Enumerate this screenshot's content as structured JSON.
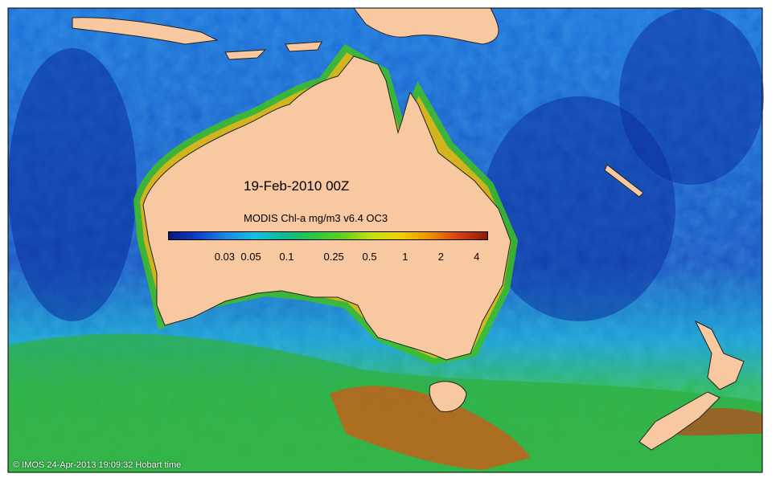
{
  "map": {
    "date": "19-Feb-2010 00Z",
    "scale_title": "MODIS Chl-a mg/m3 v6.4 OC3",
    "credit": "© IMOS 24-Apr-2013 19:09:32 Hobart time",
    "colorbar": {
      "stops": [
        "#0a1580",
        "#1040c8",
        "#1a8ae8",
        "#18c0e0",
        "#10b890",
        "#28c840",
        "#60d020",
        "#c8e010",
        "#f0d000",
        "#f09000",
        "#d84010",
        "#8a1a08"
      ],
      "ticks": [
        {
          "label": "0.03",
          "value": 0.03
        },
        {
          "label": "0.05",
          "value": 0.05
        },
        {
          "label": "0.1",
          "value": 0.1
        },
        {
          "label": "0.25",
          "value": 0.25
        },
        {
          "label": "0.5",
          "value": 0.5
        },
        {
          "label": "1",
          "value": 1
        },
        {
          "label": "2",
          "value": 2
        },
        {
          "label": "4",
          "value": 4
        }
      ],
      "range": [
        0.01,
        5
      ]
    },
    "colors": {
      "land": "#f8c8a0",
      "open_ocean": "#1a50c0",
      "southern_ocean": "#30b040",
      "high_chl": "#e04010"
    }
  }
}
